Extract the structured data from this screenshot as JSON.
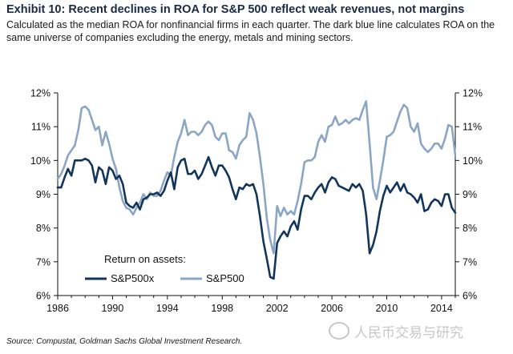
{
  "header": {
    "title": "Exhibit 10: Recent declines in ROA for S&P 500 reflect weak revenues, not margins",
    "subtitle": "Calculated as the median ROA for nonfinancial firms in each quarter. The dark blue line calculates ROA on the same universe of companies excluding the energy, metals and mining sectors."
  },
  "footer": {
    "source": "Source: Compustat, Goldman Sachs Global Investment Research.",
    "watermark": "人民币交易与研究"
  },
  "colors": {
    "sp500x": "#12355b",
    "sp500": "#8aa6c4"
  },
  "chart_data": {
    "type": "line",
    "legend_title": "Return on assets:",
    "legend_placement": "bottom-left",
    "grid": false,
    "xlim": [
      1986,
      2015
    ],
    "ylim": [
      6,
      12
    ],
    "x_ticks": [
      "1986",
      "1990",
      "1994",
      "1998",
      "2002",
      "2006",
      "2010",
      "2014"
    ],
    "y_ticks_left": [
      "6%",
      "7%",
      "8%",
      "9%",
      "10%",
      "11%",
      "12%"
    ],
    "y_ticks_right": [
      "6%",
      "7%",
      "8%",
      "9%",
      "10%",
      "11%",
      "12%"
    ],
    "series": [
      {
        "name": "S&P500x",
        "color": "#12355b",
        "points": [
          [
            1986.0,
            9.2
          ],
          [
            1986.25,
            9.2
          ],
          [
            1986.5,
            9.5
          ],
          [
            1986.75,
            9.75
          ],
          [
            1987.0,
            9.55
          ],
          [
            1987.25,
            10.0
          ],
          [
            1987.5,
            10.0
          ],
          [
            1987.75,
            10.0
          ],
          [
            1988.0,
            10.05
          ],
          [
            1988.25,
            10.0
          ],
          [
            1988.5,
            9.85
          ],
          [
            1988.75,
            9.35
          ],
          [
            1989.0,
            9.8
          ],
          [
            1989.25,
            9.7
          ],
          [
            1989.5,
            9.3
          ],
          [
            1989.75,
            9.8
          ],
          [
            1990.0,
            9.7
          ],
          [
            1990.25,
            9.45
          ],
          [
            1990.5,
            9.55
          ],
          [
            1990.75,
            9.3
          ],
          [
            1991.0,
            8.75
          ],
          [
            1991.25,
            8.65
          ],
          [
            1991.5,
            8.6
          ],
          [
            1991.75,
            8.75
          ],
          [
            1992.0,
            8.55
          ],
          [
            1992.25,
            8.85
          ],
          [
            1992.5,
            8.9
          ],
          [
            1992.75,
            9.0
          ],
          [
            1993.0,
            9.0
          ],
          [
            1993.25,
            9.05
          ],
          [
            1993.5,
            8.95
          ],
          [
            1993.75,
            9.1
          ],
          [
            1994.0,
            9.4
          ],
          [
            1994.25,
            9.65
          ],
          [
            1994.5,
            9.15
          ],
          [
            1994.75,
            9.8
          ],
          [
            1995.0,
            10.0
          ],
          [
            1995.25,
            10.05
          ],
          [
            1995.5,
            9.6
          ],
          [
            1995.75,
            9.6
          ],
          [
            1996.0,
            9.7
          ],
          [
            1996.25,
            9.45
          ],
          [
            1996.5,
            9.6
          ],
          [
            1996.75,
            9.85
          ],
          [
            1997.0,
            10.1
          ],
          [
            1997.25,
            9.8
          ],
          [
            1997.5,
            9.55
          ],
          [
            1997.75,
            9.85
          ],
          [
            1998.0,
            9.85
          ],
          [
            1998.25,
            9.7
          ],
          [
            1998.5,
            9.5
          ],
          [
            1998.75,
            9.15
          ],
          [
            1999.0,
            8.85
          ],
          [
            1999.25,
            9.2
          ],
          [
            1999.5,
            9.15
          ],
          [
            1999.75,
            9.3
          ],
          [
            2000.0,
            9.25
          ],
          [
            2000.25,
            9.3
          ],
          [
            2000.5,
            9.0
          ],
          [
            2000.75,
            8.35
          ],
          [
            2001.0,
            7.6
          ],
          [
            2001.25,
            7.1
          ],
          [
            2001.5,
            6.55
          ],
          [
            2001.75,
            6.5
          ],
          [
            2002.0,
            7.55
          ],
          [
            2002.25,
            7.75
          ],
          [
            2002.5,
            7.9
          ],
          [
            2002.75,
            7.75
          ],
          [
            2003.0,
            8.05
          ],
          [
            2003.25,
            8.2
          ],
          [
            2003.5,
            7.95
          ],
          [
            2003.75,
            8.55
          ],
          [
            2004.0,
            8.95
          ],
          [
            2004.25,
            8.95
          ],
          [
            2004.5,
            8.85
          ],
          [
            2004.75,
            9.05
          ],
          [
            2005.0,
            9.2
          ],
          [
            2005.25,
            9.3
          ],
          [
            2005.5,
            9.05
          ],
          [
            2005.75,
            9.35
          ],
          [
            2006.0,
            9.5
          ],
          [
            2006.25,
            9.45
          ],
          [
            2006.5,
            9.25
          ],
          [
            2006.75,
            9.2
          ],
          [
            2007.0,
            9.15
          ],
          [
            2007.25,
            9.1
          ],
          [
            2007.5,
            9.3
          ],
          [
            2007.75,
            9.2
          ],
          [
            2008.0,
            9.3
          ],
          [
            2008.25,
            9.1
          ],
          [
            2008.5,
            8.4
          ],
          [
            2008.75,
            7.25
          ],
          [
            2009.0,
            7.5
          ],
          [
            2009.25,
            7.9
          ],
          [
            2009.5,
            8.5
          ],
          [
            2009.75,
            8.95
          ],
          [
            2010.0,
            9.25
          ],
          [
            2010.25,
            9.05
          ],
          [
            2010.5,
            9.2
          ],
          [
            2010.75,
            9.35
          ],
          [
            2011.0,
            9.1
          ],
          [
            2011.25,
            9.3
          ],
          [
            2011.5,
            9.05
          ],
          [
            2011.75,
            9.0
          ],
          [
            2012.0,
            8.9
          ],
          [
            2012.25,
            8.75
          ],
          [
            2012.5,
            9.0
          ],
          [
            2012.75,
            8.5
          ],
          [
            2013.0,
            8.55
          ],
          [
            2013.25,
            8.75
          ],
          [
            2013.5,
            8.85
          ],
          [
            2013.75,
            8.8
          ],
          [
            2014.0,
            8.65
          ],
          [
            2014.25,
            9.0
          ],
          [
            2014.5,
            9.0
          ],
          [
            2014.75,
            8.6
          ],
          [
            2015.0,
            8.45
          ]
        ]
      },
      {
        "name": "S&P500",
        "color": "#8aa6c4",
        "points": [
          [
            1986.0,
            9.45
          ],
          [
            1986.25,
            9.6
          ],
          [
            1986.5,
            9.85
          ],
          [
            1986.75,
            10.15
          ],
          [
            1987.0,
            10.3
          ],
          [
            1987.25,
            10.45
          ],
          [
            1987.5,
            10.9
          ],
          [
            1987.75,
            11.55
          ],
          [
            1988.0,
            11.6
          ],
          [
            1988.25,
            11.5
          ],
          [
            1988.5,
            11.2
          ],
          [
            1988.75,
            10.9
          ],
          [
            1989.0,
            11.0
          ],
          [
            1989.25,
            10.45
          ],
          [
            1989.5,
            10.85
          ],
          [
            1989.75,
            10.5
          ],
          [
            1990.0,
            10.05
          ],
          [
            1990.25,
            9.75
          ],
          [
            1990.5,
            9.2
          ],
          [
            1990.75,
            8.8
          ],
          [
            1991.0,
            8.6
          ],
          [
            1991.25,
            8.55
          ],
          [
            1991.5,
            8.4
          ],
          [
            1991.75,
            8.6
          ],
          [
            1992.0,
            8.75
          ],
          [
            1992.25,
            9.0
          ],
          [
            1992.5,
            8.85
          ],
          [
            1992.75,
            9.05
          ],
          [
            1993.0,
            8.95
          ],
          [
            1993.25,
            8.95
          ],
          [
            1993.5,
            9.1
          ],
          [
            1993.75,
            9.4
          ],
          [
            1994.0,
            9.65
          ],
          [
            1994.25,
            9.55
          ],
          [
            1994.5,
            10.1
          ],
          [
            1994.75,
            10.55
          ],
          [
            1995.0,
            10.8
          ],
          [
            1995.25,
            11.2
          ],
          [
            1995.5,
            10.75
          ],
          [
            1995.75,
            10.85
          ],
          [
            1996.0,
            10.85
          ],
          [
            1996.25,
            10.75
          ],
          [
            1996.5,
            10.85
          ],
          [
            1996.75,
            11.05
          ],
          [
            1997.0,
            11.15
          ],
          [
            1997.25,
            11.05
          ],
          [
            1997.5,
            10.7
          ],
          [
            1997.75,
            10.6
          ],
          [
            1998.0,
            10.8
          ],
          [
            1998.25,
            10.8
          ],
          [
            1998.5,
            10.3
          ],
          [
            1998.75,
            10.25
          ],
          [
            1999.0,
            10.05
          ],
          [
            1999.25,
            10.45
          ],
          [
            1999.5,
            10.6
          ],
          [
            1999.75,
            10.7
          ],
          [
            2000.0,
            11.4
          ],
          [
            2000.25,
            11.2
          ],
          [
            2000.5,
            10.8
          ],
          [
            2000.75,
            10.1
          ],
          [
            2001.0,
            9.3
          ],
          [
            2001.25,
            8.3
          ],
          [
            2001.5,
            7.65
          ],
          [
            2001.75,
            7.25
          ],
          [
            2002.0,
            8.65
          ],
          [
            2002.25,
            8.35
          ],
          [
            2002.5,
            8.6
          ],
          [
            2002.75,
            8.4
          ],
          [
            2003.0,
            8.5
          ],
          [
            2003.25,
            8.4
          ],
          [
            2003.5,
            8.8
          ],
          [
            2003.75,
            9.3
          ],
          [
            2004.0,
            9.95
          ],
          [
            2004.25,
            10.0
          ],
          [
            2004.5,
            10.0
          ],
          [
            2004.75,
            10.1
          ],
          [
            2005.0,
            10.55
          ],
          [
            2005.25,
            10.75
          ],
          [
            2005.5,
            10.55
          ],
          [
            2005.75,
            11.0
          ],
          [
            2006.0,
            11.05
          ],
          [
            2006.25,
            11.3
          ],
          [
            2006.5,
            11.05
          ],
          [
            2006.75,
            11.1
          ],
          [
            2007.0,
            11.2
          ],
          [
            2007.25,
            11.1
          ],
          [
            2007.5,
            11.2
          ],
          [
            2007.75,
            11.25
          ],
          [
            2008.0,
            11.2
          ],
          [
            2008.25,
            11.5
          ],
          [
            2008.5,
            11.75
          ],
          [
            2008.75,
            10.5
          ],
          [
            2009.0,
            9.2
          ],
          [
            2009.25,
            8.85
          ],
          [
            2009.5,
            9.4
          ],
          [
            2009.75,
            10.0
          ],
          [
            2010.0,
            10.7
          ],
          [
            2010.25,
            10.75
          ],
          [
            2010.5,
            10.85
          ],
          [
            2010.75,
            11.15
          ],
          [
            2011.0,
            11.45
          ],
          [
            2011.25,
            11.65
          ],
          [
            2011.5,
            11.55
          ],
          [
            2011.75,
            11.0
          ],
          [
            2012.0,
            10.85
          ],
          [
            2012.25,
            11.1
          ],
          [
            2012.5,
            10.5
          ],
          [
            2012.75,
            10.35
          ],
          [
            2013.0,
            10.25
          ],
          [
            2013.25,
            10.35
          ],
          [
            2013.5,
            10.5
          ],
          [
            2013.75,
            10.5
          ],
          [
            2014.0,
            10.35
          ],
          [
            2014.25,
            10.65
          ],
          [
            2014.5,
            11.05
          ],
          [
            2014.75,
            11.0
          ],
          [
            2015.0,
            10.15
          ]
        ]
      }
    ]
  }
}
